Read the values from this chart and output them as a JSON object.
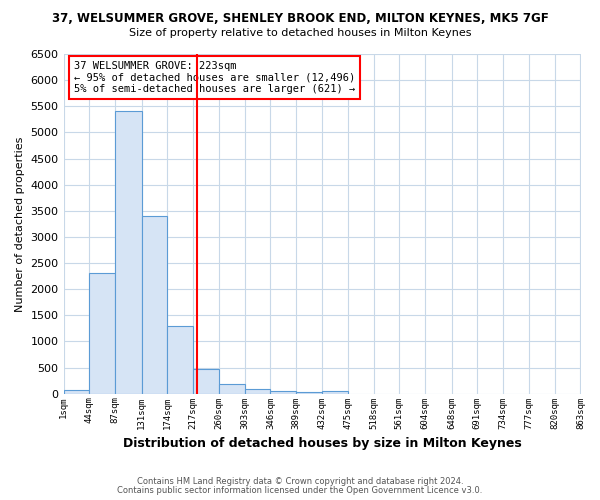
{
  "title1": "37, WELSUMMER GROVE, SHENLEY BROOK END, MILTON KEYNES, MK5 7GF",
  "title2": "Size of property relative to detached houses in Milton Keynes",
  "xlabel": "Distribution of detached houses by size in Milton Keynes",
  "ylabel": "Number of detached properties",
  "footnote1": "Contains HM Land Registry data © Crown copyright and database right 2024.",
  "footnote2": "Contains public sector information licensed under the Open Government Licence v3.0.",
  "annotation_line1": "37 WELSUMMER GROVE: 223sqm",
  "annotation_line2": "← 95% of detached houses are smaller (12,496)",
  "annotation_line3": "5% of semi-detached houses are larger (621) →",
  "bin_edges": [
    1,
    44,
    87,
    131,
    174,
    217,
    260,
    303,
    346,
    389,
    432,
    475,
    518,
    561,
    604,
    648,
    691,
    734,
    777,
    820,
    863
  ],
  "bar_heights": [
    75,
    2300,
    5400,
    3400,
    1300,
    480,
    190,
    90,
    60,
    40,
    55,
    0,
    0,
    0,
    0,
    0,
    0,
    0,
    0,
    0
  ],
  "bar_color": "#d6e4f5",
  "bar_edge_color": "#5b9bd5",
  "property_line_x": 223,
  "property_line_color": "red",
  "ylim": [
    0,
    6500
  ],
  "xlim": [
    1,
    863
  ],
  "tick_labels": [
    "1sqm",
    "44sqm",
    "87sqm",
    "131sqm",
    "174sqm",
    "217sqm",
    "260sqm",
    "303sqm",
    "346sqm",
    "389sqm",
    "432sqm",
    "475sqm",
    "518sqm",
    "561sqm",
    "604sqm",
    "648sqm",
    "691sqm",
    "734sqm",
    "777sqm",
    "820sqm",
    "863sqm"
  ],
  "tick_positions": [
    1,
    44,
    87,
    131,
    174,
    217,
    260,
    303,
    346,
    389,
    432,
    475,
    518,
    561,
    604,
    648,
    691,
    734,
    777,
    820,
    863
  ],
  "background_color": "#ffffff",
  "grid_color": "#c8d8e8",
  "annotation_box_color": "#ffffff",
  "annotation_box_edge_color": "red"
}
